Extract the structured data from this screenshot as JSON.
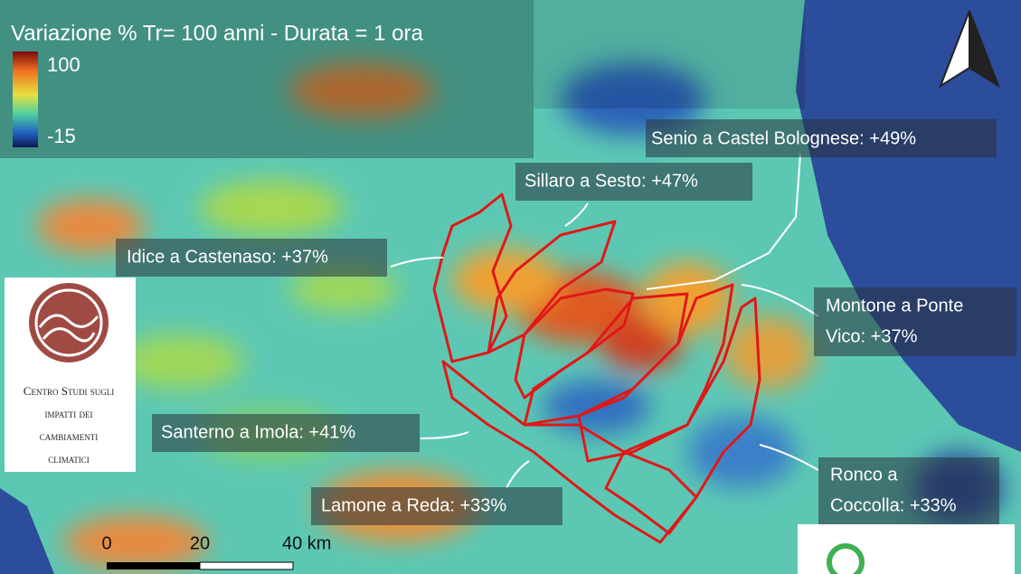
{
  "title": "Variazione % Tr= 100 anni - Durata = 1 ora",
  "legend": {
    "max": 100,
    "min": -15
  },
  "stations": [
    {
      "lines": [
        "Senio a Castel Bolognese: +49%"
      ]
    },
    {
      "lines": [
        "Sillaro a Sesto: +47%"
      ]
    },
    {
      "lines": [
        "Idice a Castenaso: +37%"
      ]
    },
    {
      "lines": [
        "Montone a Ponte",
        "Vico: +37%"
      ]
    },
    {
      "lines": [
        "Santerno a Imola: +41%"
      ]
    },
    {
      "lines": [
        "Lamone a Reda: +33%"
      ]
    },
    {
      "lines": [
        "Ronco a",
        "Coccolla: +33%"
      ]
    }
  ],
  "logo": [
    "Centro Studi sugli",
    "impatti dei",
    "cambiamenti",
    "climatici"
  ],
  "scale": [
    "0",
    "20",
    "40 km"
  ]
}
